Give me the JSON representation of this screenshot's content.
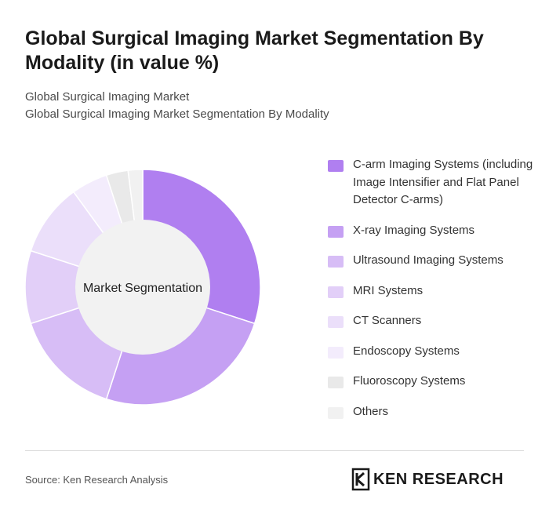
{
  "header": {
    "title": "Global Surgical Imaging Market Segmentation By Modality (in value %)",
    "subtitle_line1": "Global Surgical Imaging Market",
    "subtitle_line2": "Global Surgical Imaging Market Segmentation By Modality"
  },
  "chart_data": {
    "type": "pie",
    "variant": "donut",
    "center_label": "Market Segmentation",
    "legend_position": "right",
    "categories": [
      "C-arm Imaging Systems (including Image Intensifier and Flat Panel Detector C-arms)",
      "X-ray Imaging Systems",
      "Ultrasound Imaging Systems",
      "MRI Systems",
      "CT Scanners",
      "Endoscopy Systems",
      "Fluoroscopy Systems",
      "Others"
    ],
    "values": [
      30,
      25,
      15,
      10,
      10,
      5,
      3,
      2
    ],
    "colors": [
      "#b07ff0",
      "#c5a0f3",
      "#d7bdf6",
      "#e2cff8",
      "#ebdffa",
      "#f3ecfc",
      "#e9e9e9",
      "#f1f1f1"
    ],
    "center_color": "#f2f2f2"
  },
  "footer": {
    "source": "Source: Ken Research Analysis",
    "logo_text": "KEN RESEARCH",
    "logo_icon": "ken-research-logo-icon"
  }
}
